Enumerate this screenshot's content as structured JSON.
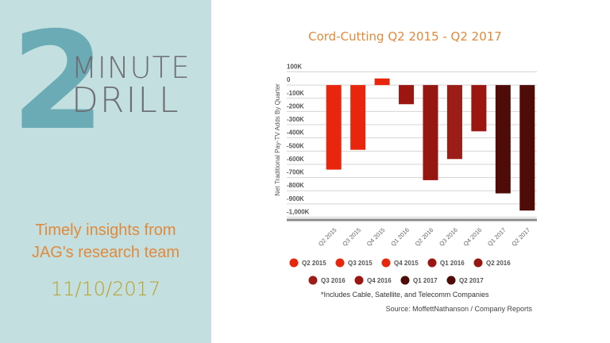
{
  "branding": {
    "number": "2",
    "word1": "MINUTE",
    "word2": "DRILL",
    "tagline_line1": "Timely insights from",
    "tagline_line2": "JAG's research team",
    "date": "11/10/2017"
  },
  "colors": {
    "panel_bg": "#c3dfe0",
    "number": "#6aabb5",
    "heading_text": "#6d6f73",
    "tagline": "#e08a3c",
    "date": "#b9a22a",
    "title": "#e08a3c"
  },
  "chart_data": {
    "type": "bar",
    "title": "Cord-Cutting Q2 2015 - Q2 2017",
    "xlabel": "",
    "ylabel": "Net Traditional Pay-TV Adds By Quarter",
    "categories": [
      "Q2 2015",
      "Q3 2015",
      "Q4 2015",
      "Q1 2016",
      "Q2 2016",
      "Q3 2016",
      "Q4 2016",
      "Q1 2017",
      "Q2 2017"
    ],
    "values": [
      -640000,
      -490000,
      50000,
      -145000,
      -720000,
      -560000,
      -350000,
      -820000,
      -950000
    ],
    "colors": [
      "#e8260d",
      "#e8260d",
      "#e8260d",
      "#9b1610",
      "#961610",
      "#9c1d18",
      "#9b1610",
      "#4e0b08",
      "#4e0b08"
    ],
    "ylim": [
      -1000000,
      100000
    ],
    "yticks": [
      100000,
      0,
      -100000,
      -200000,
      -300000,
      -400000,
      -500000,
      -600000,
      -700000,
      -800000,
      -900000,
      -1000000
    ],
    "ytick_labels": [
      "100K",
      "0",
      "-100K",
      "-200K",
      "-300K",
      "-400K",
      "-500K",
      "-600K",
      "-700K",
      "-800K",
      "-900K",
      "-1,000K"
    ],
    "grid": true,
    "legend": {
      "position": "bottom",
      "entries": [
        "Q2 2015",
        "Q3 2015",
        "Q4 2015",
        "Q1 2016",
        "Q2 2016",
        "Q3 2016",
        "Q4 2016",
        "Q1 2017",
        "Q2 2017"
      ]
    },
    "footnote": "*Includes Cable, Satellite, and Telecomm Companies",
    "source": "Source: MoffettNathanson / Company Reports"
  }
}
